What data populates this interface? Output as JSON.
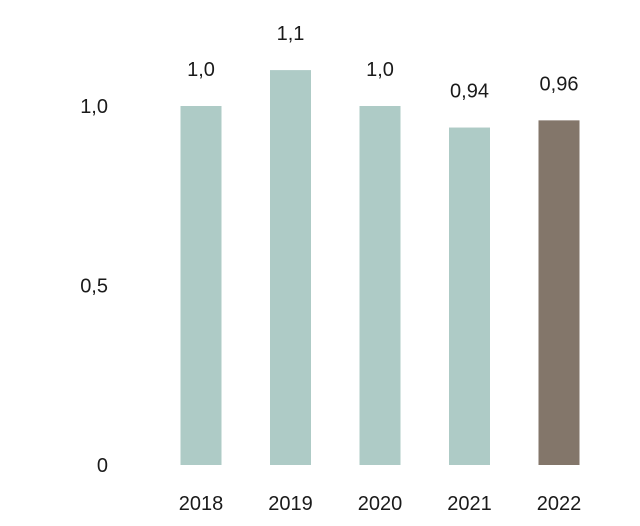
{
  "chart_data": {
    "type": "bar",
    "title": "",
    "xlabel": "",
    "ylabel": "",
    "categories": [
      "2018",
      "2019",
      "2020",
      "2021",
      "2022"
    ],
    "values": [
      1.0,
      1.1,
      1.0,
      0.94,
      0.96
    ],
    "value_labels": [
      "1,0",
      "1,1",
      "1,0",
      "0,94",
      "0,96"
    ],
    "ylim": [
      0,
      1.0
    ],
    "yticks": [
      0,
      0.5,
      1.0
    ],
    "ytick_labels": [
      "0",
      "0,5",
      "1,0"
    ],
    "grid": false,
    "legend": "none",
    "colors": {
      "default_bar": "#aecbc6",
      "highlight_bar": "#83766a",
      "text": "#1a1a1a"
    },
    "highlight_index": 4
  }
}
